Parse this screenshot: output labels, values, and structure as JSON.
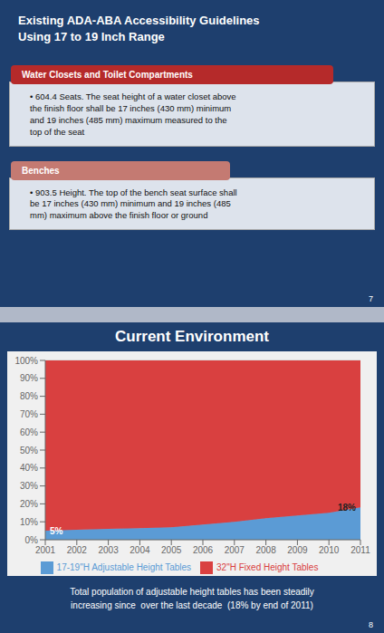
{
  "chart_data": [
    {
      "type": "text",
      "title": "Existing ADA-ABA Accessibility Guidelines\nUsing 17 to 19 Inch Range",
      "annotations": [
        "Water Closets and Toilet Compartments",
        "• 604.4 Seats. The seat height of a water closet above\nthe finish floor shall be 17 inches (430 mm) minimum\nand 19 inches (485 mm) maximum measured to the\ntop of the seat",
        "Benches",
        "• 903.5 Height. The top of the bench seat surface shall\nbe 17 inches (430 mm) minimum and 19 inches (485\nmm) maximum above the finish floor or ground",
        "7"
      ],
      "colors": [
        "#b52a2a",
        "#c47a72"
      ]
    },
    {
      "type": "area",
      "title": "Current Environment",
      "x": [
        2001,
        2002,
        2003,
        2004,
        2005,
        2006,
        2007,
        2008,
        2009,
        2010,
        2011
      ],
      "series": [
        {
          "name": "17-19\"H Adjustable Height Tables",
          "color": "#5b9bd5",
          "values": [
            5,
            5.5,
            6,
            6.5,
            7,
            8.5,
            10,
            12,
            13.5,
            15,
            18
          ]
        },
        {
          "name": "32\"H Fixed Height Tables",
          "color": "#d94040",
          "values": [
            95,
            94.5,
            94,
            93.5,
            93,
            91.5,
            90,
            88,
            86.5,
            85,
            82
          ]
        }
      ],
      "stacked": true,
      "xlim": [
        2001,
        2011
      ],
      "xticks": [
        2001,
        2002,
        2003,
        2004,
        2005,
        2006,
        2007,
        2008,
        2009,
        2010,
        2011
      ],
      "ylim": [
        0,
        100
      ],
      "yticks": [
        {
          "value": 0,
          "label": "0%"
        },
        {
          "value": 10,
          "label": "10%"
        },
        {
          "value": 20,
          "label": "20%"
        },
        {
          "value": 30,
          "label": "30%"
        },
        {
          "value": 40,
          "label": "40%"
        },
        {
          "value": 50,
          "label": "50%"
        },
        {
          "value": 60,
          "label": "60%"
        },
        {
          "value": 70,
          "label": "70%"
        },
        {
          "value": 80,
          "label": "80%"
        },
        {
          "value": 90,
          "label": "90%"
        },
        {
          "value": 100,
          "label": "100%"
        }
      ],
      "grid": true,
      "legend": "bottom",
      "annotations": [
        "5%",
        "18%",
        "Total population of adjustable height tables has been steadily\nincreasing since  over the last decade  (18% by end of 2011)",
        "8"
      ]
    }
  ]
}
